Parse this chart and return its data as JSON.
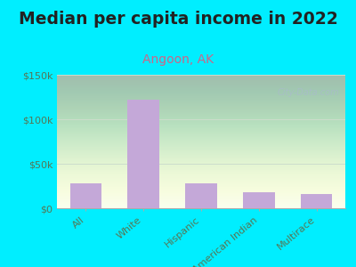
{
  "title": "Median per capita income in 2022",
  "subtitle": "Angoon, AK",
  "categories": [
    "All",
    "White",
    "Hispanic",
    "American Indian",
    "Multirace"
  ],
  "values": [
    28000,
    122000,
    28000,
    18000,
    16000
  ],
  "bar_color": "#c4a8d8",
  "title_fontsize": 13.5,
  "title_fontweight": "bold",
  "subtitle_fontsize": 10,
  "subtitle_color": "#cc6688",
  "title_color": "#222222",
  "tick_color": "#557755",
  "background_figure": "#00eeff",
  "ylim": [
    0,
    150000
  ],
  "yticks": [
    0,
    50000,
    100000,
    150000
  ],
  "ytick_labels": [
    "$0",
    "$50k",
    "$100k",
    "$150k"
  ],
  "grid_ticks": [
    50000,
    100000
  ],
  "watermark": "City-Data.com",
  "watermark_color": "#aabbcc",
  "axes_bg_top": "#eaf5e0",
  "axes_bg_bottom": "#f8fef4"
}
